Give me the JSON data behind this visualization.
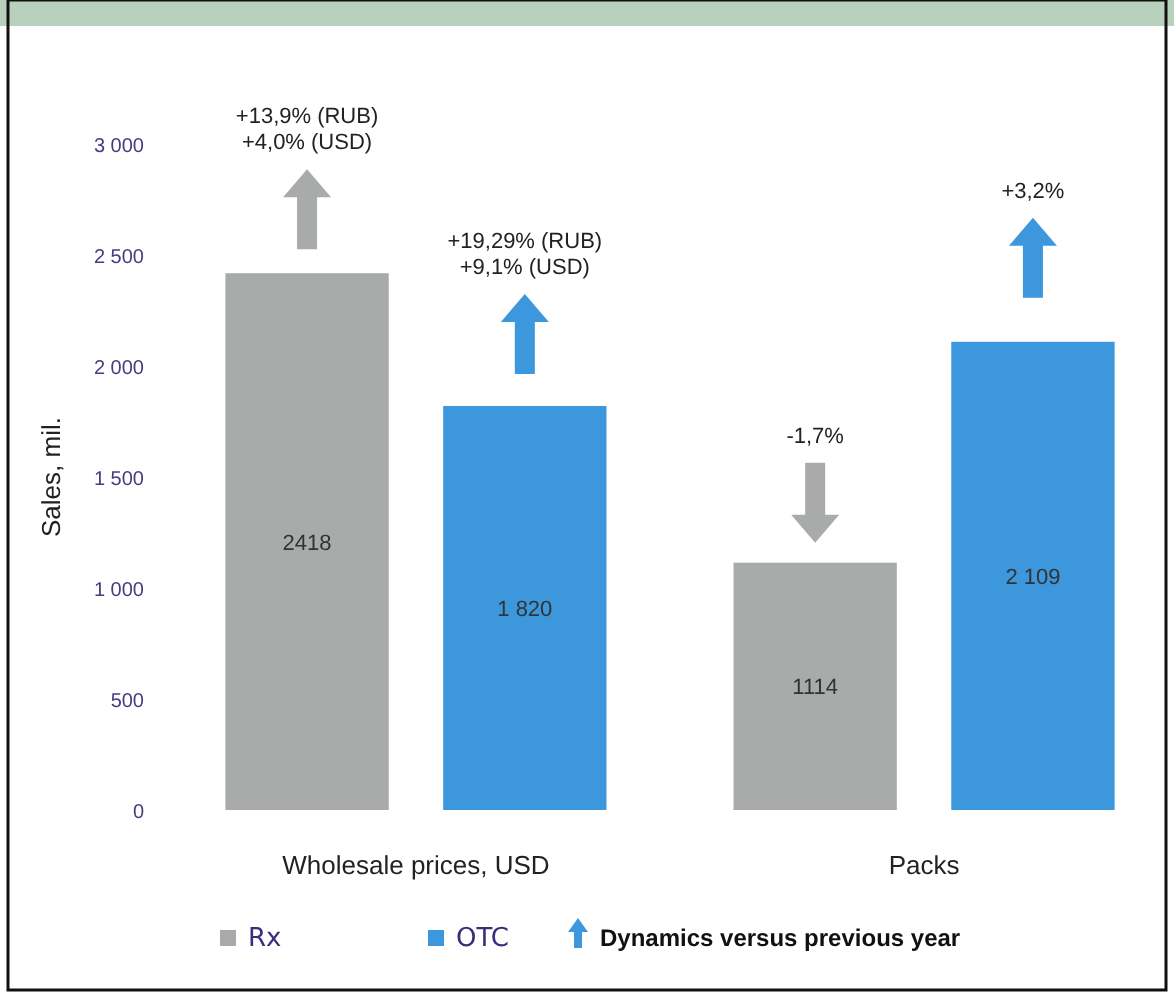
{
  "chart_data": {
    "type": "bar",
    "ylabel": "Sales, mil.",
    "categories": [
      "Wholesale prices, USD",
      "Packs"
    ],
    "series": [
      {
        "name": "Rx",
        "color": "#a9abab",
        "values": [
          2418,
          1114
        ],
        "value_labels": [
          "2418",
          "1114"
        ]
      },
      {
        "name": "OTC",
        "color": "#3d97dc",
        "values": [
          1820,
          2109
        ],
        "value_labels": [
          "1 820",
          "2 109"
        ]
      }
    ],
    "ylim": [
      0,
      3000
    ],
    "yticks": [
      {
        "value": 0,
        "label": "0"
      },
      {
        "value": 500,
        "label": "500"
      },
      {
        "value": 1000,
        "label": "1 000"
      },
      {
        "value": 1500,
        "label": "1 500"
      },
      {
        "value": 2000,
        "label": "2 000"
      },
      {
        "value": 2500,
        "label": "2 500"
      },
      {
        "value": 3000,
        "label": "3 000"
      }
    ],
    "grid": false,
    "legend": "bottom",
    "annotations": [
      "+13,9% (RUB)\n+4,0% (USD)",
      "+19,29% (RUB)\n+9,1% (USD)",
      "-1,7%",
      "+3,2%",
      "Dynamics versus previous year"
    ]
  }
}
